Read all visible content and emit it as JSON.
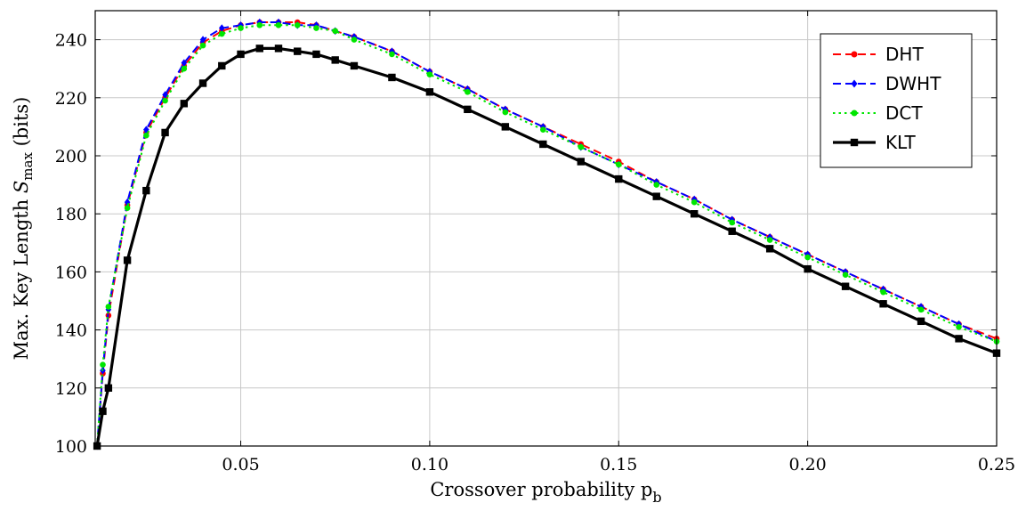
{
  "chart_data": {
    "type": "line",
    "xlabel": "Crossover probability p",
    "xlabel_sub": "b",
    "ylabel_prefix": "Max. Key Length ",
    "ylabel_symbol": "S",
    "ylabel_sub": "max",
    "ylabel_suffix": " (bits)",
    "xlim": [
      0.0115,
      0.25
    ],
    "ylim": [
      100,
      250
    ],
    "xticks": [
      0.05,
      0.1,
      0.15,
      0.2,
      0.25
    ],
    "xtick_labels": [
      "0.05",
      "0.10",
      "0.15",
      "0.20",
      "0.25"
    ],
    "yticks": [
      100,
      120,
      140,
      160,
      180,
      200,
      220,
      240
    ],
    "ytick_labels": [
      "100",
      "120",
      "140",
      "160",
      "180",
      "200",
      "220",
      "240"
    ],
    "grid": true,
    "legend_position": "top-right",
    "series": [
      {
        "name": "DHT",
        "color": "#ff0000",
        "dash": "dashed",
        "marker": "circle",
        "x": [
          0.012,
          0.0135,
          0.015,
          0.02,
          0.025,
          0.03,
          0.035,
          0.04,
          0.045,
          0.05,
          0.055,
          0.06,
          0.065,
          0.07,
          0.075,
          0.08,
          0.09,
          0.1,
          0.11,
          0.12,
          0.13,
          0.14,
          0.15,
          0.16,
          0.17,
          0.18,
          0.19,
          0.2,
          0.21,
          0.22,
          0.23,
          0.24,
          0.25
        ],
        "y": [
          100,
          125,
          145,
          183,
          208,
          220,
          231,
          239,
          243,
          245,
          246,
          246,
          246,
          245,
          243,
          241,
          236,
          229,
          223,
          216,
          210,
          204,
          198,
          191,
          185,
          178,
          172,
          166,
          160,
          154,
          148,
          142,
          137
        ]
      },
      {
        "name": "DWHT",
        "color": "#0000ff",
        "dash": "dashed",
        "marker": "diamond",
        "x": [
          0.012,
          0.0135,
          0.015,
          0.02,
          0.025,
          0.03,
          0.035,
          0.04,
          0.045,
          0.05,
          0.055,
          0.06,
          0.065,
          0.07,
          0.075,
          0.08,
          0.09,
          0.1,
          0.11,
          0.12,
          0.13,
          0.14,
          0.15,
          0.16,
          0.17,
          0.18,
          0.19,
          0.2,
          0.21,
          0.22,
          0.23,
          0.24,
          0.25
        ],
        "y": [
          100,
          126,
          147,
          184,
          209,
          221,
          232,
          240,
          244,
          245,
          246,
          246,
          245,
          245,
          243,
          241,
          236,
          229,
          223,
          216,
          210,
          203,
          197,
          191,
          185,
          178,
          172,
          166,
          160,
          154,
          148,
          142,
          136
        ]
      },
      {
        "name": "DCT",
        "color": "#00e600",
        "dash": "dotted",
        "marker": "circle",
        "x": [
          0.012,
          0.0135,
          0.015,
          0.02,
          0.025,
          0.03,
          0.035,
          0.04,
          0.045,
          0.05,
          0.055,
          0.06,
          0.065,
          0.07,
          0.075,
          0.08,
          0.09,
          0.1,
          0.11,
          0.12,
          0.13,
          0.14,
          0.15,
          0.16,
          0.17,
          0.18,
          0.19,
          0.2,
          0.21,
          0.22,
          0.23,
          0.24,
          0.25
        ],
        "y": [
          100,
          128,
          148,
          182,
          207,
          219,
          230,
          238,
          242,
          244,
          245,
          245,
          245,
          244,
          243,
          240,
          235,
          228,
          222,
          215,
          209,
          203,
          197,
          190,
          184,
          177,
          171,
          165,
          159,
          153,
          147,
          141,
          136
        ]
      },
      {
        "name": "KLT",
        "color": "#000000",
        "dash": "solid",
        "marker": "square",
        "x": [
          0.012,
          0.0135,
          0.015,
          0.02,
          0.025,
          0.03,
          0.035,
          0.04,
          0.045,
          0.05,
          0.055,
          0.06,
          0.065,
          0.07,
          0.075,
          0.08,
          0.09,
          0.1,
          0.11,
          0.12,
          0.13,
          0.14,
          0.15,
          0.16,
          0.17,
          0.18,
          0.19,
          0.2,
          0.21,
          0.22,
          0.23,
          0.24,
          0.25
        ],
        "y": [
          100,
          112,
          120,
          164,
          188,
          208,
          218,
          225,
          231,
          235,
          237,
          237,
          236,
          235,
          233,
          231,
          227,
          222,
          216,
          210,
          204,
          198,
          192,
          186,
          180,
          174,
          168,
          161,
          155,
          149,
          143,
          137,
          132
        ]
      }
    ]
  }
}
